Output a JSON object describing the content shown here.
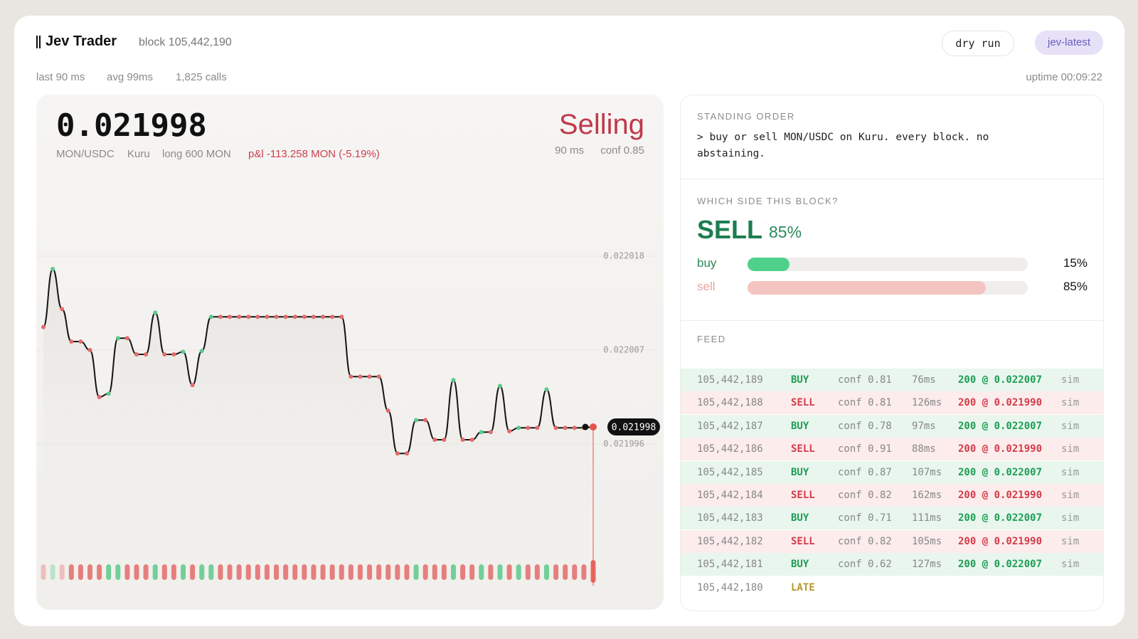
{
  "header": {
    "title": "Jev Trader",
    "block": "block 105,442,190",
    "buttons": [
      "dry run",
      "jev-latest"
    ],
    "stats": [
      "last 90 ms",
      "avg 99ms",
      "1,825 calls"
    ],
    "uptime": "uptime 00:09:22"
  },
  "ticker": {
    "price": "0.021998",
    "pair": "MON/USDC",
    "venue": "Kuru",
    "position": "long 600 MON",
    "pnl": "p&l -113.258 MON (-5.19%)",
    "status": "Selling",
    "latency": "90 ms",
    "confidence": "conf 0.85"
  },
  "chart_data": {
    "type": "line",
    "values": [
      0.0220097,
      0.0220165,
      0.0220118,
      0.022008,
      0.022008,
      0.022007,
      0.0220015,
      0.0220019,
      0.0220084,
      0.0220084,
      0.0220065,
      0.0220065,
      0.0220114,
      0.0220065,
      0.0220065,
      0.0220068,
      0.0220029,
      0.0220069,
      0.0220109,
      0.0220109,
      0.0220109,
      0.0220109,
      0.0220109,
      0.0220109,
      0.0220109,
      0.0220109,
      0.0220109,
      0.0220109,
      0.0220109,
      0.0220109,
      0.0220109,
      0.0220109,
      0.0220109,
      0.0220039,
      0.0220039,
      0.0220039,
      0.0220039,
      0.0219999,
      0.0219949,
      0.0219949,
      0.0219988,
      0.0219988,
      0.0219965,
      0.0219965,
      0.0220035,
      0.0219965,
      0.0219965,
      0.0219974,
      0.0219974,
      0.0220028,
      0.0219975,
      0.0219979,
      0.0219979,
      0.0219979,
      0.0220024,
      0.0219979,
      0.0219979,
      0.0219979,
      0.0219979,
      0.021998
    ],
    "ylim": [
      0.02198,
      0.02203
    ],
    "yticks": [
      0.021996,
      0.022007,
      0.022018
    ],
    "grid": true,
    "color": "#151515",
    "up_color": "#5cc98a",
    "down_color": "#e36b6b",
    "marker_color": "#e5534b"
  },
  "standing_order": {
    "title": "STANDING ORDER",
    "text": "> buy or sell MON/USDC on Kuru. every block. no abstaining."
  },
  "decision": {
    "title": "WHICH SIDE THIS BLOCK?",
    "side": "SELL",
    "confidence": "85%",
    "bars": [
      {
        "name": "buy",
        "value": 15,
        "value_label": "15%",
        "color": "#4fd18b",
        "label_color": "#2b8a5a"
      },
      {
        "name": "sell",
        "value": 85,
        "value_label": "85%",
        "color": "#f4c4c0",
        "label_color": "#e9a3a3"
      }
    ]
  },
  "feed": {
    "title": "FEED",
    "styles": {
      "BUY": {
        "text": "#1f9d55",
        "bg": "#e8f6ee"
      },
      "SELL": {
        "text": "#d23c4a",
        "bg": "#fcecec"
      },
      "LATE": {
        "text": "#b8962a",
        "bg": "#ffffff"
      }
    },
    "rows": [
      [
        "105,442,189",
        "BUY",
        "conf 0.81",
        "76ms",
        "200 @ 0.022007",
        "sim"
      ],
      [
        "105,442,188",
        "SELL",
        "conf 0.81",
        "126ms",
        "200 @ 0.021990",
        "sim"
      ],
      [
        "105,442,187",
        "BUY",
        "conf 0.78",
        "97ms",
        "200 @ 0.022007",
        "sim"
      ],
      [
        "105,442,186",
        "SELL",
        "conf 0.91",
        "88ms",
        "200 @ 0.021990",
        "sim"
      ],
      [
        "105,442,185",
        "BUY",
        "conf 0.87",
        "107ms",
        "200 @ 0.022007",
        "sim"
      ],
      [
        "105,442,184",
        "SELL",
        "conf 0.82",
        "162ms",
        "200 @ 0.021990",
        "sim"
      ],
      [
        "105,442,183",
        "BUY",
        "conf 0.71",
        "111ms",
        "200 @ 0.022007",
        "sim"
      ],
      [
        "105,442,182",
        "SELL",
        "conf 0.82",
        "105ms",
        "200 @ 0.021990",
        "sim"
      ],
      [
        "105,442,181",
        "BUY",
        "conf 0.62",
        "127ms",
        "200 @ 0.022007",
        "sim"
      ],
      [
        "105,442,180",
        "LATE"
      ]
    ]
  }
}
